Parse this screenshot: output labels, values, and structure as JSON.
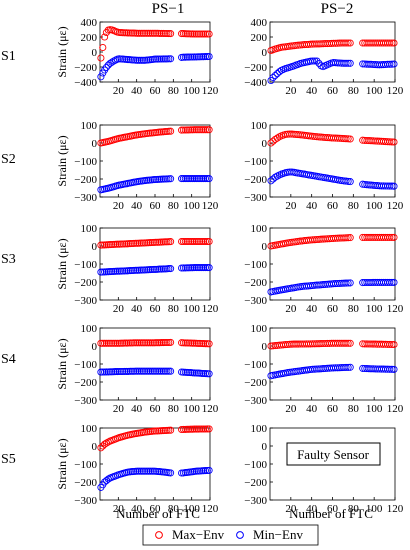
{
  "columns": [
    "PS−1",
    "PS−2"
  ],
  "rows": [
    "S1",
    "S2",
    "S3",
    "S4",
    "S5"
  ],
  "ylabel": "Strain (με)",
  "xlabel": "Number of FTC",
  "faulty_label": "Faulty Sensor",
  "legend": {
    "max": "Max−Env",
    "min": "Min−Env"
  },
  "colors": {
    "max": "#ff0000",
    "min": "#0000ff"
  },
  "chart_data": [
    {
      "type": "scatter",
      "id": "S1-PS1",
      "xlim": [
        0,
        120
      ],
      "ylim": [
        -400,
        400
      ],
      "yticks": [
        400,
        200,
        0,
        -200,
        -400
      ],
      "xticks": [
        20,
        40,
        60,
        80,
        100,
        120
      ],
      "series": [
        {
          "name": "Max−Env",
          "x": [
            1,
            3,
            5,
            8,
            12,
            20,
            40,
            60,
            78,
            90,
            105,
            120
          ],
          "y": [
            -80,
            60,
            200,
            290,
            300,
            260,
            250,
            250,
            245,
            245,
            240,
            240
          ]
        },
        {
          "name": "Min−Env",
          "x": [
            1,
            3,
            6,
            10,
            15,
            20,
            30,
            40,
            50,
            60,
            78,
            90,
            105,
            120
          ],
          "y": [
            -330,
            -280,
            -220,
            -160,
            -120,
            -90,
            -100,
            -110,
            -110,
            -95,
            -90,
            -70,
            -65,
            -60
          ]
        }
      ]
    },
    {
      "type": "scatter",
      "id": "S1-PS2",
      "xlim": [
        0,
        120
      ],
      "ylim": [
        -400,
        400
      ],
      "yticks": [
        400,
        200,
        0,
        -200,
        -400
      ],
      "xticks": [
        20,
        40,
        60,
        80,
        100,
        120
      ],
      "series": [
        {
          "name": "Max−Env",
          "x": [
            1,
            5,
            10,
            20,
            30,
            40,
            50,
            60,
            70,
            78,
            90,
            105,
            120
          ],
          "y": [
            20,
            40,
            60,
            80,
            95,
            105,
            110,
            115,
            120,
            120,
            120,
            120,
            120
          ]
        },
        {
          "name": "Min−Env",
          "x": [
            1,
            3,
            6,
            10,
            15,
            20,
            30,
            40,
            45,
            50,
            60,
            70,
            78,
            90,
            105,
            120
          ],
          "y": [
            -380,
            -340,
            -300,
            -250,
            -220,
            -200,
            -150,
            -120,
            -120,
            -200,
            -140,
            -150,
            -150,
            -160,
            -170,
            -160
          ]
        }
      ]
    },
    {
      "type": "scatter",
      "id": "S2-PS1",
      "xlim": [
        0,
        120
      ],
      "ylim": [
        -300,
        100
      ],
      "yticks": [
        100,
        0,
        -100,
        -200,
        -300
      ],
      "xticks": [
        20,
        40,
        60,
        80,
        100,
        120
      ],
      "series": [
        {
          "name": "Max−Env",
          "x": [
            1,
            10,
            20,
            30,
            40,
            50,
            60,
            70,
            78,
            90,
            105,
            120
          ],
          "y": [
            0,
            10,
            25,
            35,
            45,
            52,
            58,
            63,
            66,
            72,
            74,
            74
          ]
        },
        {
          "name": "Min−Env",
          "x": [
            1,
            10,
            20,
            30,
            40,
            50,
            60,
            70,
            78,
            90,
            105,
            120
          ],
          "y": [
            -260,
            -250,
            -235,
            -225,
            -215,
            -208,
            -203,
            -200,
            -198,
            -198,
            -198,
            -198
          ]
        }
      ]
    },
    {
      "type": "scatter",
      "id": "S2-PS2",
      "xlim": [
        0,
        120
      ],
      "ylim": [
        -300,
        100
      ],
      "yticks": [
        100,
        0,
        -100,
        -200,
        -300
      ],
      "xticks": [
        20,
        40,
        60,
        80,
        100,
        120
      ],
      "series": [
        {
          "name": "Max−Env",
          "x": [
            1,
            5,
            10,
            15,
            20,
            30,
            40,
            50,
            60,
            70,
            78,
            90,
            105,
            120
          ],
          "y": [
            0,
            20,
            38,
            48,
            50,
            45,
            38,
            32,
            28,
            25,
            22,
            15,
            10,
            5
          ]
        },
        {
          "name": "Min−Env",
          "x": [
            1,
            5,
            10,
            15,
            20,
            30,
            40,
            50,
            60,
            70,
            78,
            90,
            105,
            120
          ],
          "y": [
            -210,
            -190,
            -175,
            -165,
            -160,
            -170,
            -180,
            -190,
            -200,
            -210,
            -215,
            -230,
            -238,
            -240
          ]
        }
      ]
    },
    {
      "type": "scatter",
      "id": "S3-PS1",
      "xlim": [
        0,
        120
      ],
      "ylim": [
        -300,
        100
      ],
      "yticks": [
        100,
        0,
        -100,
        -200,
        -300
      ],
      "xticks": [
        20,
        40,
        60,
        80,
        100,
        120
      ],
      "series": [
        {
          "name": "Max−Env",
          "x": [
            1,
            20,
            40,
            60,
            78,
            90,
            105,
            120
          ],
          "y": [
            5,
            10,
            15,
            20,
            25,
            25,
            25,
            25
          ]
        },
        {
          "name": "Min−Env",
          "x": [
            1,
            20,
            40,
            60,
            78,
            90,
            105,
            120
          ],
          "y": [
            -145,
            -140,
            -135,
            -130,
            -125,
            -122,
            -120,
            -120
          ]
        }
      ]
    },
    {
      "type": "scatter",
      "id": "S3-PS2",
      "xlim": [
        0,
        120
      ],
      "ylim": [
        -300,
        100
      ],
      "yticks": [
        100,
        0,
        -100,
        -200,
        -300
      ],
      "xticks": [
        20,
        40,
        60,
        80,
        100,
        120
      ],
      "series": [
        {
          "name": "Max−Env",
          "x": [
            1,
            10,
            20,
            30,
            40,
            50,
            60,
            70,
            78,
            90,
            105,
            120
          ],
          "y": [
            0,
            10,
            20,
            28,
            34,
            38,
            42,
            45,
            47,
            48,
            48,
            48
          ]
        },
        {
          "name": "Min−Env",
          "x": [
            1,
            10,
            20,
            30,
            40,
            50,
            60,
            70,
            78,
            90,
            105,
            120
          ],
          "y": [
            -255,
            -245,
            -235,
            -225,
            -220,
            -215,
            -210,
            -207,
            -205,
            -203,
            -202,
            -202
          ]
        }
      ]
    },
    {
      "type": "scatter",
      "id": "S4-PS1",
      "xlim": [
        0,
        120
      ],
      "ylim": [
        -300,
        100
      ],
      "yticks": [
        100,
        0,
        -100,
        -200,
        -300
      ],
      "xticks": [
        20,
        40,
        60,
        80,
        100,
        120
      ],
      "series": [
        {
          "name": "Max−Env",
          "x": [
            1,
            20,
            40,
            60,
            78,
            90,
            105,
            120
          ],
          "y": [
            15,
            15,
            18,
            18,
            20,
            18,
            15,
            12
          ]
        },
        {
          "name": "Min−Env",
          "x": [
            1,
            20,
            40,
            60,
            78,
            90,
            105,
            120
          ],
          "y": [
            -145,
            -142,
            -140,
            -140,
            -140,
            -145,
            -150,
            -155
          ]
        }
      ]
    },
    {
      "type": "scatter",
      "id": "S4-PS2",
      "xlim": [
        0,
        120
      ],
      "ylim": [
        -300,
        100
      ],
      "yticks": [
        100,
        0,
        -100,
        -200,
        -300
      ],
      "xticks": [
        20,
        40,
        60,
        80,
        100,
        120
      ],
      "series": [
        {
          "name": "Max−Env",
          "x": [
            1,
            10,
            20,
            40,
            60,
            78,
            90,
            105,
            120
          ],
          "y": [
            0,
            5,
            10,
            12,
            15,
            15,
            12,
            10,
            8
          ]
        },
        {
          "name": "Min−Env",
          "x": [
            1,
            10,
            20,
            40,
            60,
            78,
            90,
            105,
            120
          ],
          "y": [
            -165,
            -155,
            -145,
            -130,
            -122,
            -118,
            -125,
            -128,
            -130
          ]
        }
      ]
    },
    {
      "type": "scatter",
      "id": "S5-PS1",
      "xlim": [
        0,
        120
      ],
      "ylim": [
        -300,
        100
      ],
      "yticks": [
        100,
        0,
        -100,
        -200,
        -300
      ],
      "xticks": [
        20,
        40,
        60,
        80,
        100,
        120
      ],
      "series": [
        {
          "name": "Max−Env",
          "x": [
            1,
            5,
            10,
            20,
            30,
            40,
            50,
            60,
            70,
            78,
            90,
            105,
            120
          ],
          "y": [
            -10,
            10,
            25,
            45,
            60,
            70,
            78,
            83,
            86,
            88,
            92,
            94,
            95
          ]
        },
        {
          "name": "Min−Env",
          "x": [
            1,
            5,
            10,
            20,
            30,
            40,
            50,
            60,
            70,
            78,
            90,
            105,
            120
          ],
          "y": [
            -230,
            -200,
            -180,
            -160,
            -145,
            -140,
            -140,
            -140,
            -145,
            -150,
            -150,
            -140,
            -135
          ]
        }
      ]
    }
  ]
}
